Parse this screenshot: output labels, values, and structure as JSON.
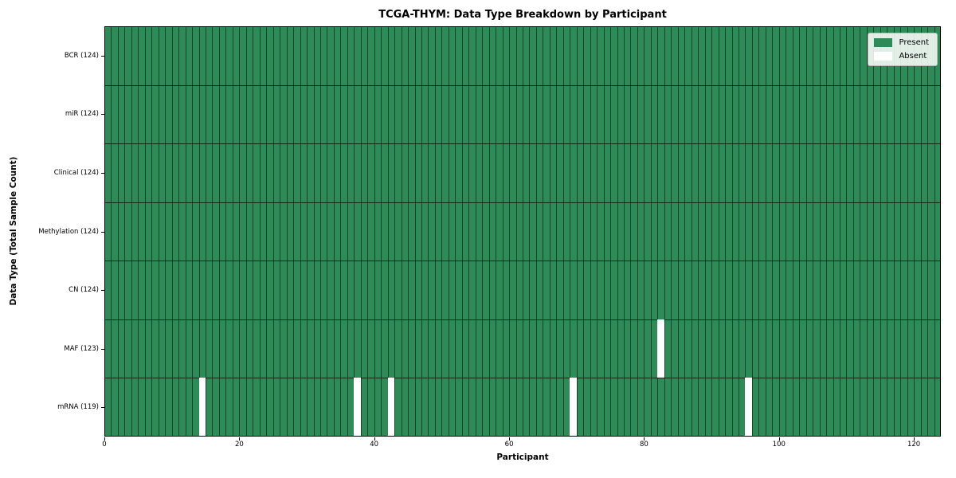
{
  "title": "TCGA-THYM: Data Type Breakdown by Participant",
  "axes": {
    "xlabel": "Participant",
    "ylabel": "Data Type (Total Sample Count)",
    "x_ticks": [
      "0",
      "20",
      "40",
      "60",
      "80",
      "100",
      "120"
    ],
    "x_tick_values": [
      0,
      20,
      40,
      60,
      80,
      100,
      120
    ]
  },
  "legend": {
    "items": [
      {
        "label": "Present",
        "color": "#2e8b57"
      },
      {
        "label": "Absent",
        "color": "#ffffff"
      }
    ]
  },
  "chart_data": {
    "type": "heatmap",
    "title": "TCGA-THYM: Data Type Breakdown by Participant",
    "xlabel": "Participant",
    "ylabel": "Data Type (Total Sample Count)",
    "n_participants": 124,
    "xlim": [
      0,
      124
    ],
    "present_color": "#2e8b57",
    "absent_color": "#ffffff",
    "cell_edge_color": "rgba(0,0,0,0.5)",
    "legend_entries": [
      "Present",
      "Absent"
    ],
    "legend_position": "upper right",
    "rows": [
      {
        "label": "BCR (124)",
        "data_type": "BCR",
        "total_samples": 124,
        "absent_participants": []
      },
      {
        "label": "miR (124)",
        "data_type": "miR",
        "total_samples": 124,
        "absent_participants": []
      },
      {
        "label": "Clinical (124)",
        "data_type": "Clinical",
        "total_samples": 124,
        "absent_participants": []
      },
      {
        "label": "Methylation (124)",
        "data_type": "Methylation",
        "total_samples": 124,
        "absent_participants": []
      },
      {
        "label": "CN (124)",
        "data_type": "CN",
        "total_samples": 124,
        "absent_participants": []
      },
      {
        "label": "MAF (123)",
        "data_type": "MAF",
        "total_samples": 123,
        "absent_participants": [
          82
        ]
      },
      {
        "label": "mRNA (119)",
        "data_type": "mRNA",
        "total_samples": 119,
        "absent_participants": [
          14,
          37,
          42,
          69,
          95
        ]
      }
    ]
  }
}
